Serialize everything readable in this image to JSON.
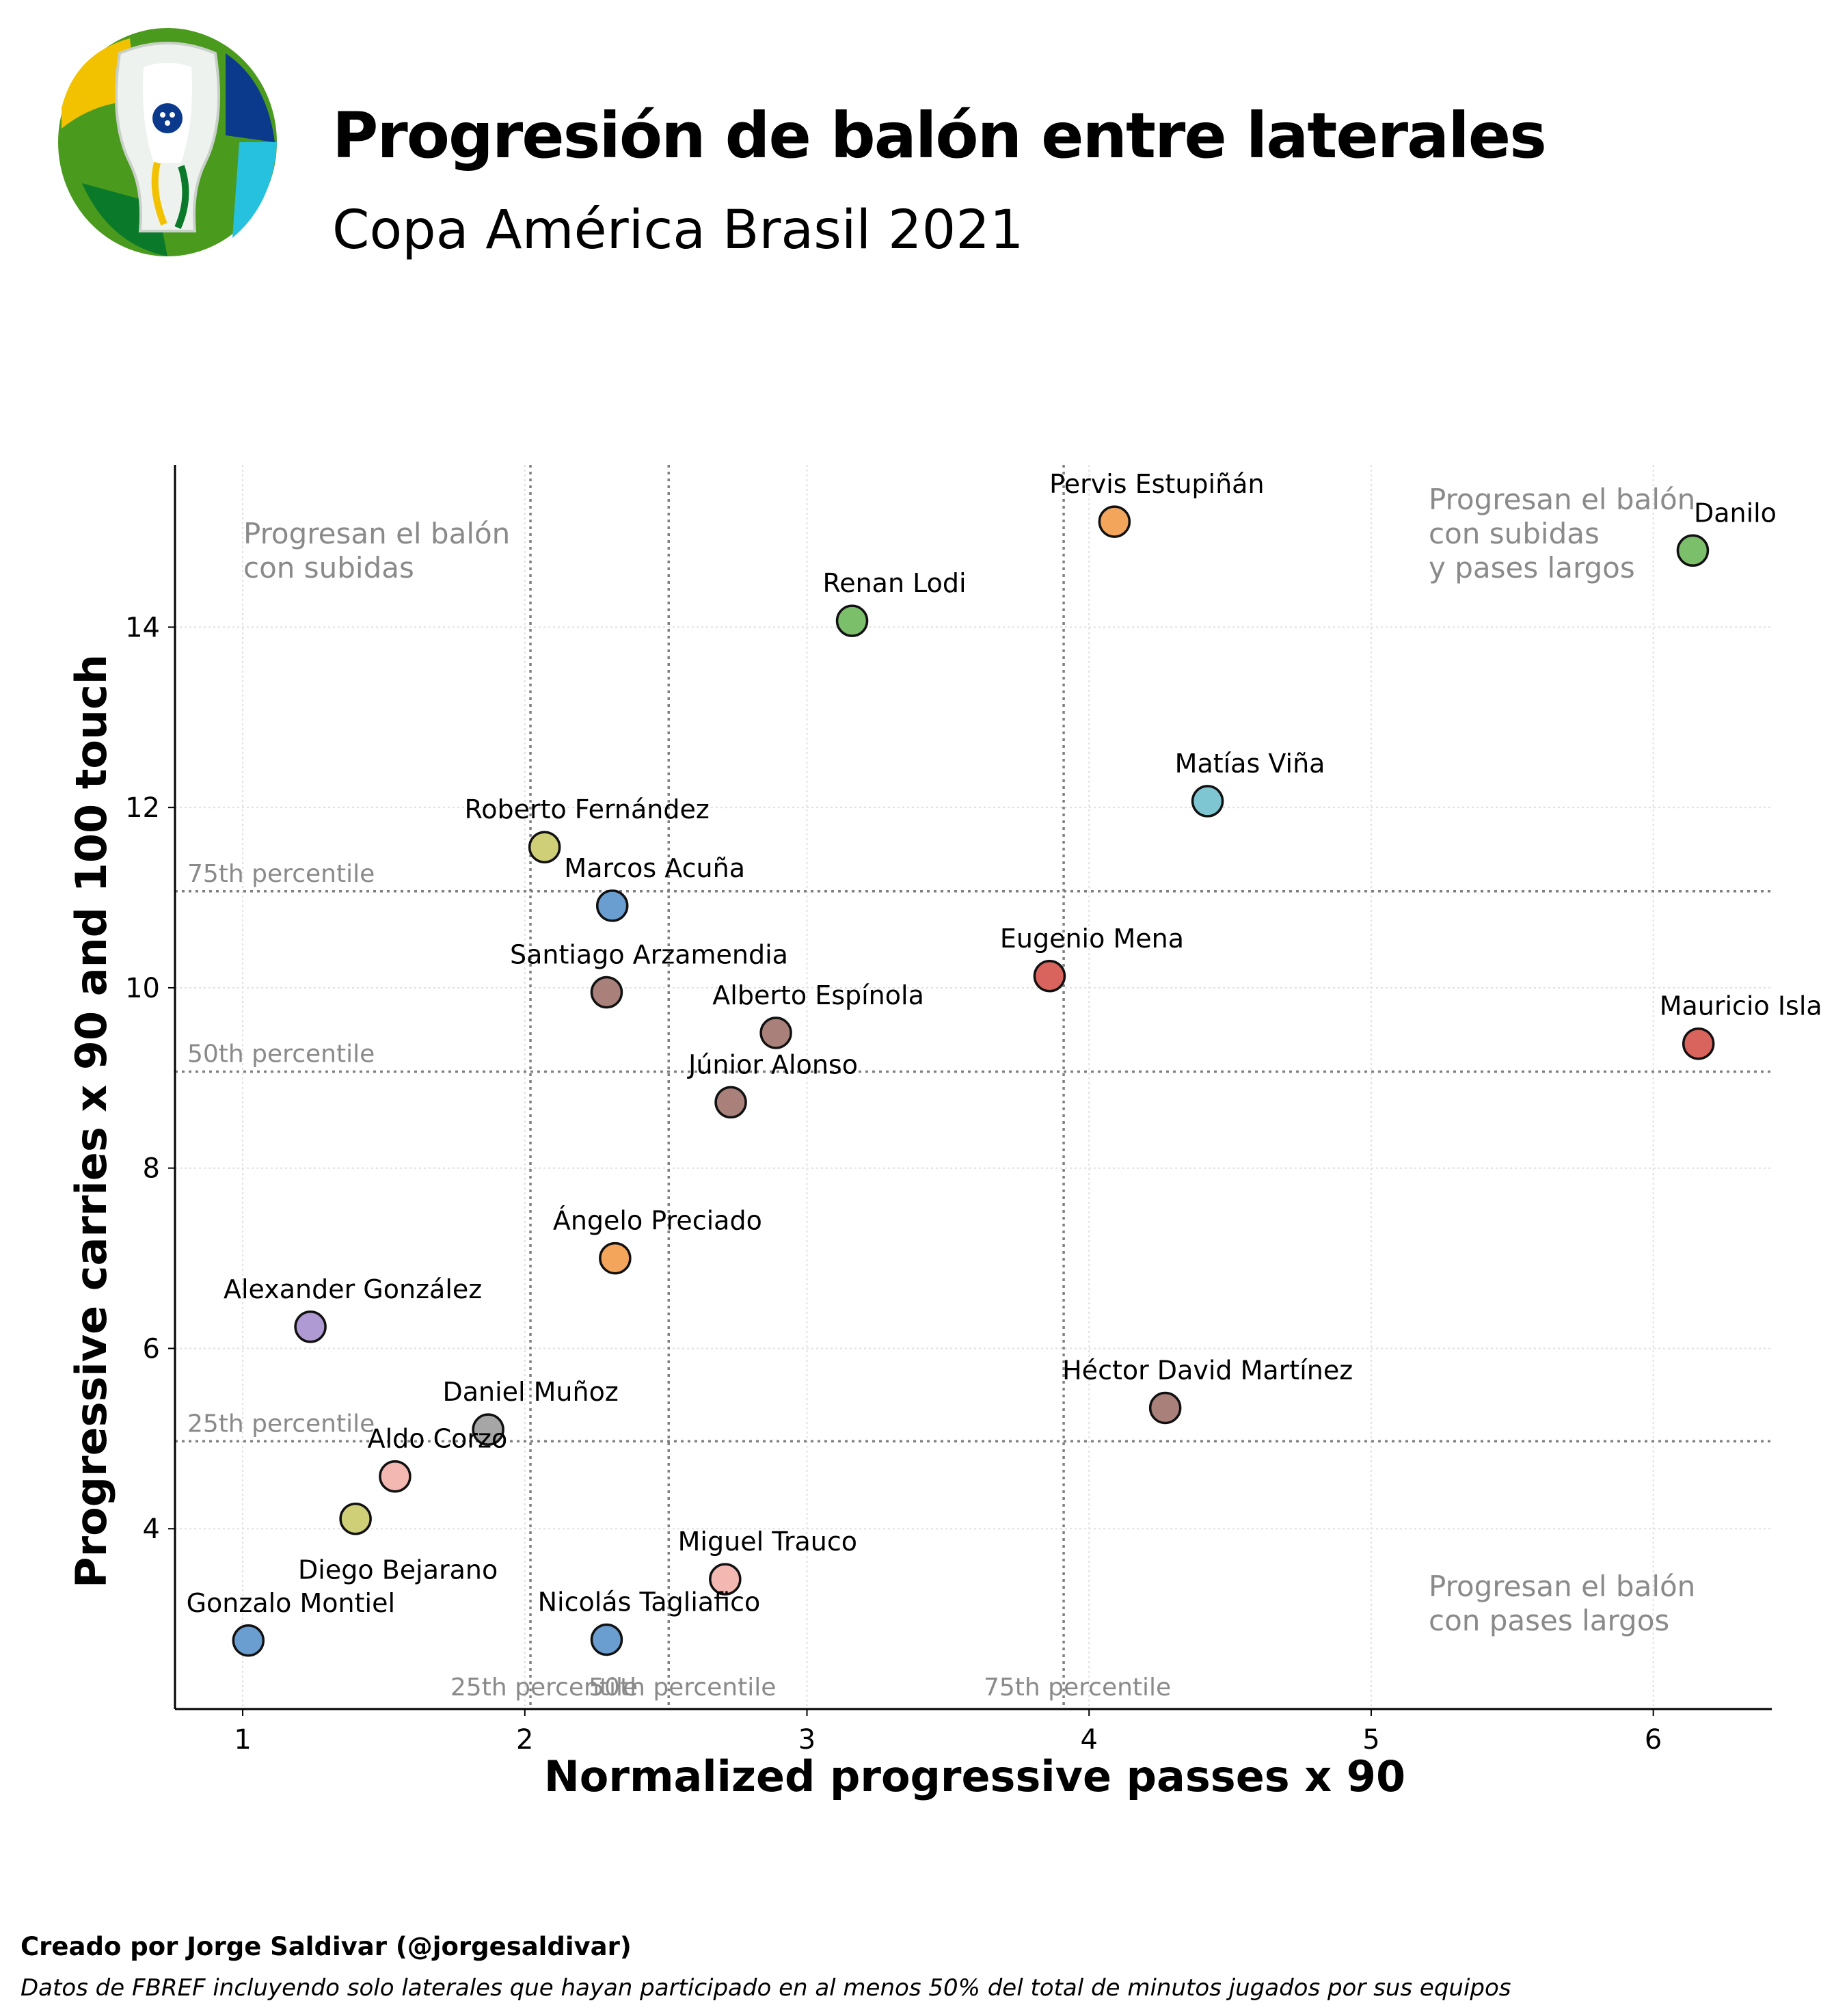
{
  "header": {
    "title": "Progresión de balón entre laterales",
    "subtitle": "Copa América Brasil 2021"
  },
  "footer": {
    "credit": "Creado por Jorge Saldivar (@jorgesaldivar)",
    "source": "Datos de FBREF incluyendo solo laterales que hayan participado en al menos 50% del total de minutos jugados por sus equipos"
  },
  "chart_data": {
    "type": "scatter",
    "xlabel": "Normalized progressive passes x 90",
    "ylabel": "Progressive carries x 90 and 100 touch",
    "xlim": [
      0.76,
      6.42
    ],
    "ylim": [
      2.0,
      15.8
    ],
    "xticks": [
      1,
      2,
      3,
      4,
      5,
      6
    ],
    "yticks": [
      4,
      6,
      8,
      10,
      12,
      14
    ],
    "grid": true,
    "reference_lines": {
      "x": [
        {
          "value": 2.02,
          "label": "25th percentile"
        },
        {
          "value": 2.51,
          "label": "50th percentile"
        },
        {
          "value": 3.91,
          "label": "75th percentile"
        }
      ],
      "y": [
        {
          "value": 4.97,
          "label": "25th percentile"
        },
        {
          "value": 9.07,
          "label": "50th percentile"
        },
        {
          "value": 11.07,
          "label": "75th percentile"
        }
      ]
    },
    "quadrant_labels": [
      {
        "text": "Progresan el balón\ncon subidas",
        "position": "top-left"
      },
      {
        "text": "Progresan el balón\ncon subidas\ny pases largos",
        "position": "top-right"
      },
      {
        "text": "Progresan el balón\ncon pases largos",
        "position": "bottom-right"
      }
    ],
    "points": [
      {
        "name": "Pervis Estupiñán",
        "x": 4.09,
        "y": 15.17,
        "color": "#f4a55c"
      },
      {
        "name": "Danilo",
        "x": 6.14,
        "y": 14.85,
        "color": "#7bbf6a"
      },
      {
        "name": "Renan Lodi",
        "x": 3.16,
        "y": 14.07,
        "color": "#7bbf6a"
      },
      {
        "name": "Matías Viña",
        "x": 4.42,
        "y": 12.07,
        "color": "#7ec6d2"
      },
      {
        "name": "Roberto Fernández",
        "x": 2.07,
        "y": 11.56,
        "color": "#cfcf77"
      },
      {
        "name": "Marcos Acuña",
        "x": 2.31,
        "y": 10.91,
        "color": "#6a9dd0"
      },
      {
        "name": "Santiago Arzamendia",
        "x": 2.29,
        "y": 9.95,
        "color": "#a9807a"
      },
      {
        "name": "Eugenio Mena",
        "x": 3.86,
        "y": 10.13,
        "color": "#d9645e"
      },
      {
        "name": "Alberto Espínola",
        "x": 2.89,
        "y": 9.5,
        "color": "#a9807a"
      },
      {
        "name": "Mauricio Isla",
        "x": 6.16,
        "y": 9.38,
        "color": "#d9645e"
      },
      {
        "name": "Júnior Alonso",
        "x": 2.73,
        "y": 8.73,
        "color": "#a9807a"
      },
      {
        "name": "Ángelo Preciado",
        "x": 2.32,
        "y": 7.0,
        "color": "#f4a55c"
      },
      {
        "name": "Alexander González",
        "x": 1.24,
        "y": 6.24,
        "color": "#b09ad3"
      },
      {
        "name": "Héctor David Martínez",
        "x": 4.27,
        "y": 5.34,
        "color": "#a9807a"
      },
      {
        "name": "Daniel Muñoz",
        "x": 1.87,
        "y": 5.1,
        "color": "#a6a6a6"
      },
      {
        "name": "Aldo Corzo",
        "x": 1.54,
        "y": 4.58,
        "color": "#f4b8b3"
      },
      {
        "name": "Diego Bejarano",
        "x": 1.4,
        "y": 4.11,
        "color": "#cfcf77"
      },
      {
        "name": "Miguel Trauco",
        "x": 2.71,
        "y": 3.44,
        "color": "#f4b8b3"
      },
      {
        "name": "Gonzalo Montiel",
        "x": 1.02,
        "y": 2.76,
        "color": "#6a9dd0"
      },
      {
        "name": "Nicolás Tagliafico",
        "x": 2.29,
        "y": 2.77,
        "color": "#6a9dd0"
      }
    ]
  }
}
